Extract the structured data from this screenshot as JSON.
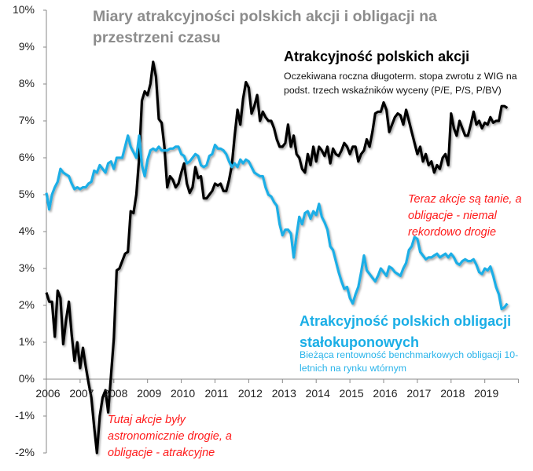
{
  "chart_data": {
    "type": "line",
    "title": "Miary atrakcyjności polskich akcji i obligacji na przestrzeni czasu",
    "xlabel": "",
    "ylabel": "",
    "xlim": [
      2006,
      2020
    ],
    "ylim": [
      -2,
      10
    ],
    "x_ticks": [
      "2006",
      "2007",
      "2008",
      "2009",
      "2010",
      "2011",
      "2012",
      "2013",
      "2014",
      "2015",
      "2016",
      "2017",
      "2018",
      "2019"
    ],
    "y_ticks": [
      "10%",
      "9%",
      "8%",
      "7%",
      "6%",
      "5%",
      "4%",
      "3%",
      "2%",
      "1%",
      "0%",
      "-1%",
      "-2%"
    ],
    "y_tick_values": [
      10,
      9,
      8,
      7,
      6,
      5,
      4,
      3,
      2,
      1,
      0,
      -1,
      -2
    ],
    "grid": false,
    "legend": "none (inline labels)",
    "series": [
      {
        "name": "Atrakcyjność polskich akcji",
        "description": "Oczekiwana roczna długoterm. stopa zwrotu z WIG na podst. trzech wskaźników wyceny (P/E, P/S, P/BV)",
        "color": "#000000",
        "values": [
          2.35,
          2.1,
          2.1,
          1.15,
          2.4,
          2.2,
          0.95,
          1.6,
          2.1,
          1.2,
          0.5,
          1.0,
          0.3,
          0.85,
          0.35,
          -0.1,
          -0.5,
          -1.3,
          -2.0,
          -1.0,
          -0.5,
          -0.3,
          -0.9,
          0.1,
          1.1,
          2.95,
          3.0,
          3.2,
          3.4,
          3.45,
          4.55,
          4.5,
          5.0,
          6.0,
          7.55,
          7.8,
          7.7,
          8.0,
          8.6,
          8.2,
          7.05,
          6.95,
          6.3,
          5.2,
          5.5,
          5.4,
          5.2,
          5.3,
          5.6,
          5.85,
          5.3,
          5.05,
          5.2,
          5.75,
          5.45,
          5.5,
          4.9,
          4.9,
          5.0,
          5.1,
          5.3,
          5.25,
          5.3,
          5.1,
          5.1,
          5.4,
          5.8,
          6.6,
          7.3,
          6.9,
          7.6,
          8.05,
          7.9,
          7.2,
          7.4,
          7.7,
          7.0,
          7.25,
          7.1,
          7.0,
          7.0,
          6.8,
          6.5,
          6.3,
          6.3,
          6.4,
          6.9,
          6.3,
          6.6,
          6.1,
          6.0,
          5.7,
          5.6,
          6.1,
          5.8,
          6.3,
          5.9,
          6.3,
          6.2,
          6.05,
          6.3,
          5.85,
          6.25,
          6.1,
          6.05,
          6.2,
          6.4,
          6.3,
          6.1,
          6.3,
          6.3,
          5.9,
          6.1,
          6.2,
          6.5,
          6.3,
          6.7,
          7.2,
          7.25,
          7.25,
          7.5,
          7.3,
          6.7,
          6.9,
          7.1,
          7.2,
          7.15,
          6.9,
          7.3,
          7.0,
          6.7,
          6.4,
          6.1,
          6.3,
          5.9,
          6.1,
          5.8,
          5.9,
          5.6,
          5.8,
          5.7,
          6.0,
          6.1,
          5.8,
          7.2,
          6.8,
          6.6,
          7.0,
          6.8,
          6.6,
          6.6,
          6.9,
          7.25,
          6.9,
          7.0,
          6.8,
          6.95,
          6.9,
          7.1,
          6.95,
          7.0,
          7.0,
          7.4,
          7.4,
          7.35
        ]
      },
      {
        "name": "Atrakcyjność polskich obligacji stałokuponowych",
        "description": "Bieżąca rentowność benchmarkowych obligacji 10-letnich na rynku wtórnym",
        "color": "#1aaee6",
        "values": [
          5.05,
          4.6,
          5.0,
          5.2,
          5.35,
          5.7,
          5.6,
          5.55,
          5.5,
          5.3,
          5.15,
          5.2,
          5.15,
          5.2,
          5.2,
          5.3,
          5.35,
          5.65,
          5.6,
          5.8,
          5.7,
          5.6,
          5.85,
          5.9,
          5.7,
          6.0,
          6.0,
          6.0,
          6.3,
          6.6,
          6.3,
          6.15,
          6.0,
          6.6,
          5.8,
          5.5,
          5.95,
          6.2,
          6.25,
          6.2,
          6.3,
          6.2,
          6.2,
          6.2,
          6.25,
          6.25,
          6.3,
          6.3,
          6.1,
          6.05,
          5.85,
          5.9,
          6.0,
          6.1,
          6.05,
          5.8,
          5.75,
          5.8,
          6.05,
          6.1,
          6.35,
          6.25,
          6.25,
          6.2,
          6.1,
          5.9,
          5.75,
          5.85,
          5.75,
          5.95,
          5.85,
          5.95,
          5.9,
          5.75,
          5.6,
          5.55,
          5.5,
          5.5,
          5.2,
          5.0,
          4.95,
          4.8,
          4.7,
          4.2,
          3.9,
          4.05,
          4.05,
          3.95,
          3.3,
          3.9,
          4.4,
          4.2,
          4.5,
          4.55,
          4.35,
          4.55,
          4.45,
          4.75,
          4.4,
          4.25,
          4.05,
          3.6,
          3.5,
          3.2,
          2.9,
          2.65,
          2.45,
          2.5,
          2.2,
          2.05,
          2.3,
          2.5,
          2.9,
          3.35,
          2.95,
          2.85,
          2.75,
          2.65,
          2.8,
          3.0,
          2.9,
          2.8,
          3.05,
          3.0,
          2.9,
          2.85,
          2.8,
          3.0,
          3.15,
          3.5,
          3.6,
          3.85,
          3.8,
          3.45,
          3.35,
          3.25,
          3.3,
          3.3,
          3.35,
          3.4,
          3.3,
          3.35,
          3.4,
          3.3,
          3.4,
          3.3,
          3.15,
          3.1,
          3.2,
          3.25,
          3.2,
          3.2,
          3.25,
          3.1,
          2.9,
          2.85,
          3.0,
          2.95,
          3.05,
          2.8,
          2.5,
          2.3,
          1.9,
          1.95,
          2.05
        ]
      }
    ],
    "x_start": 2006,
    "x_step_years": 0.08333,
    "annotations": {
      "now": "Teraz akcje są tanie, a obligacje - niemal rekordowo drogie",
      "then": "Tutaj akcje były astronomicznie drogie, a obligacje - atrakcyjne"
    }
  }
}
